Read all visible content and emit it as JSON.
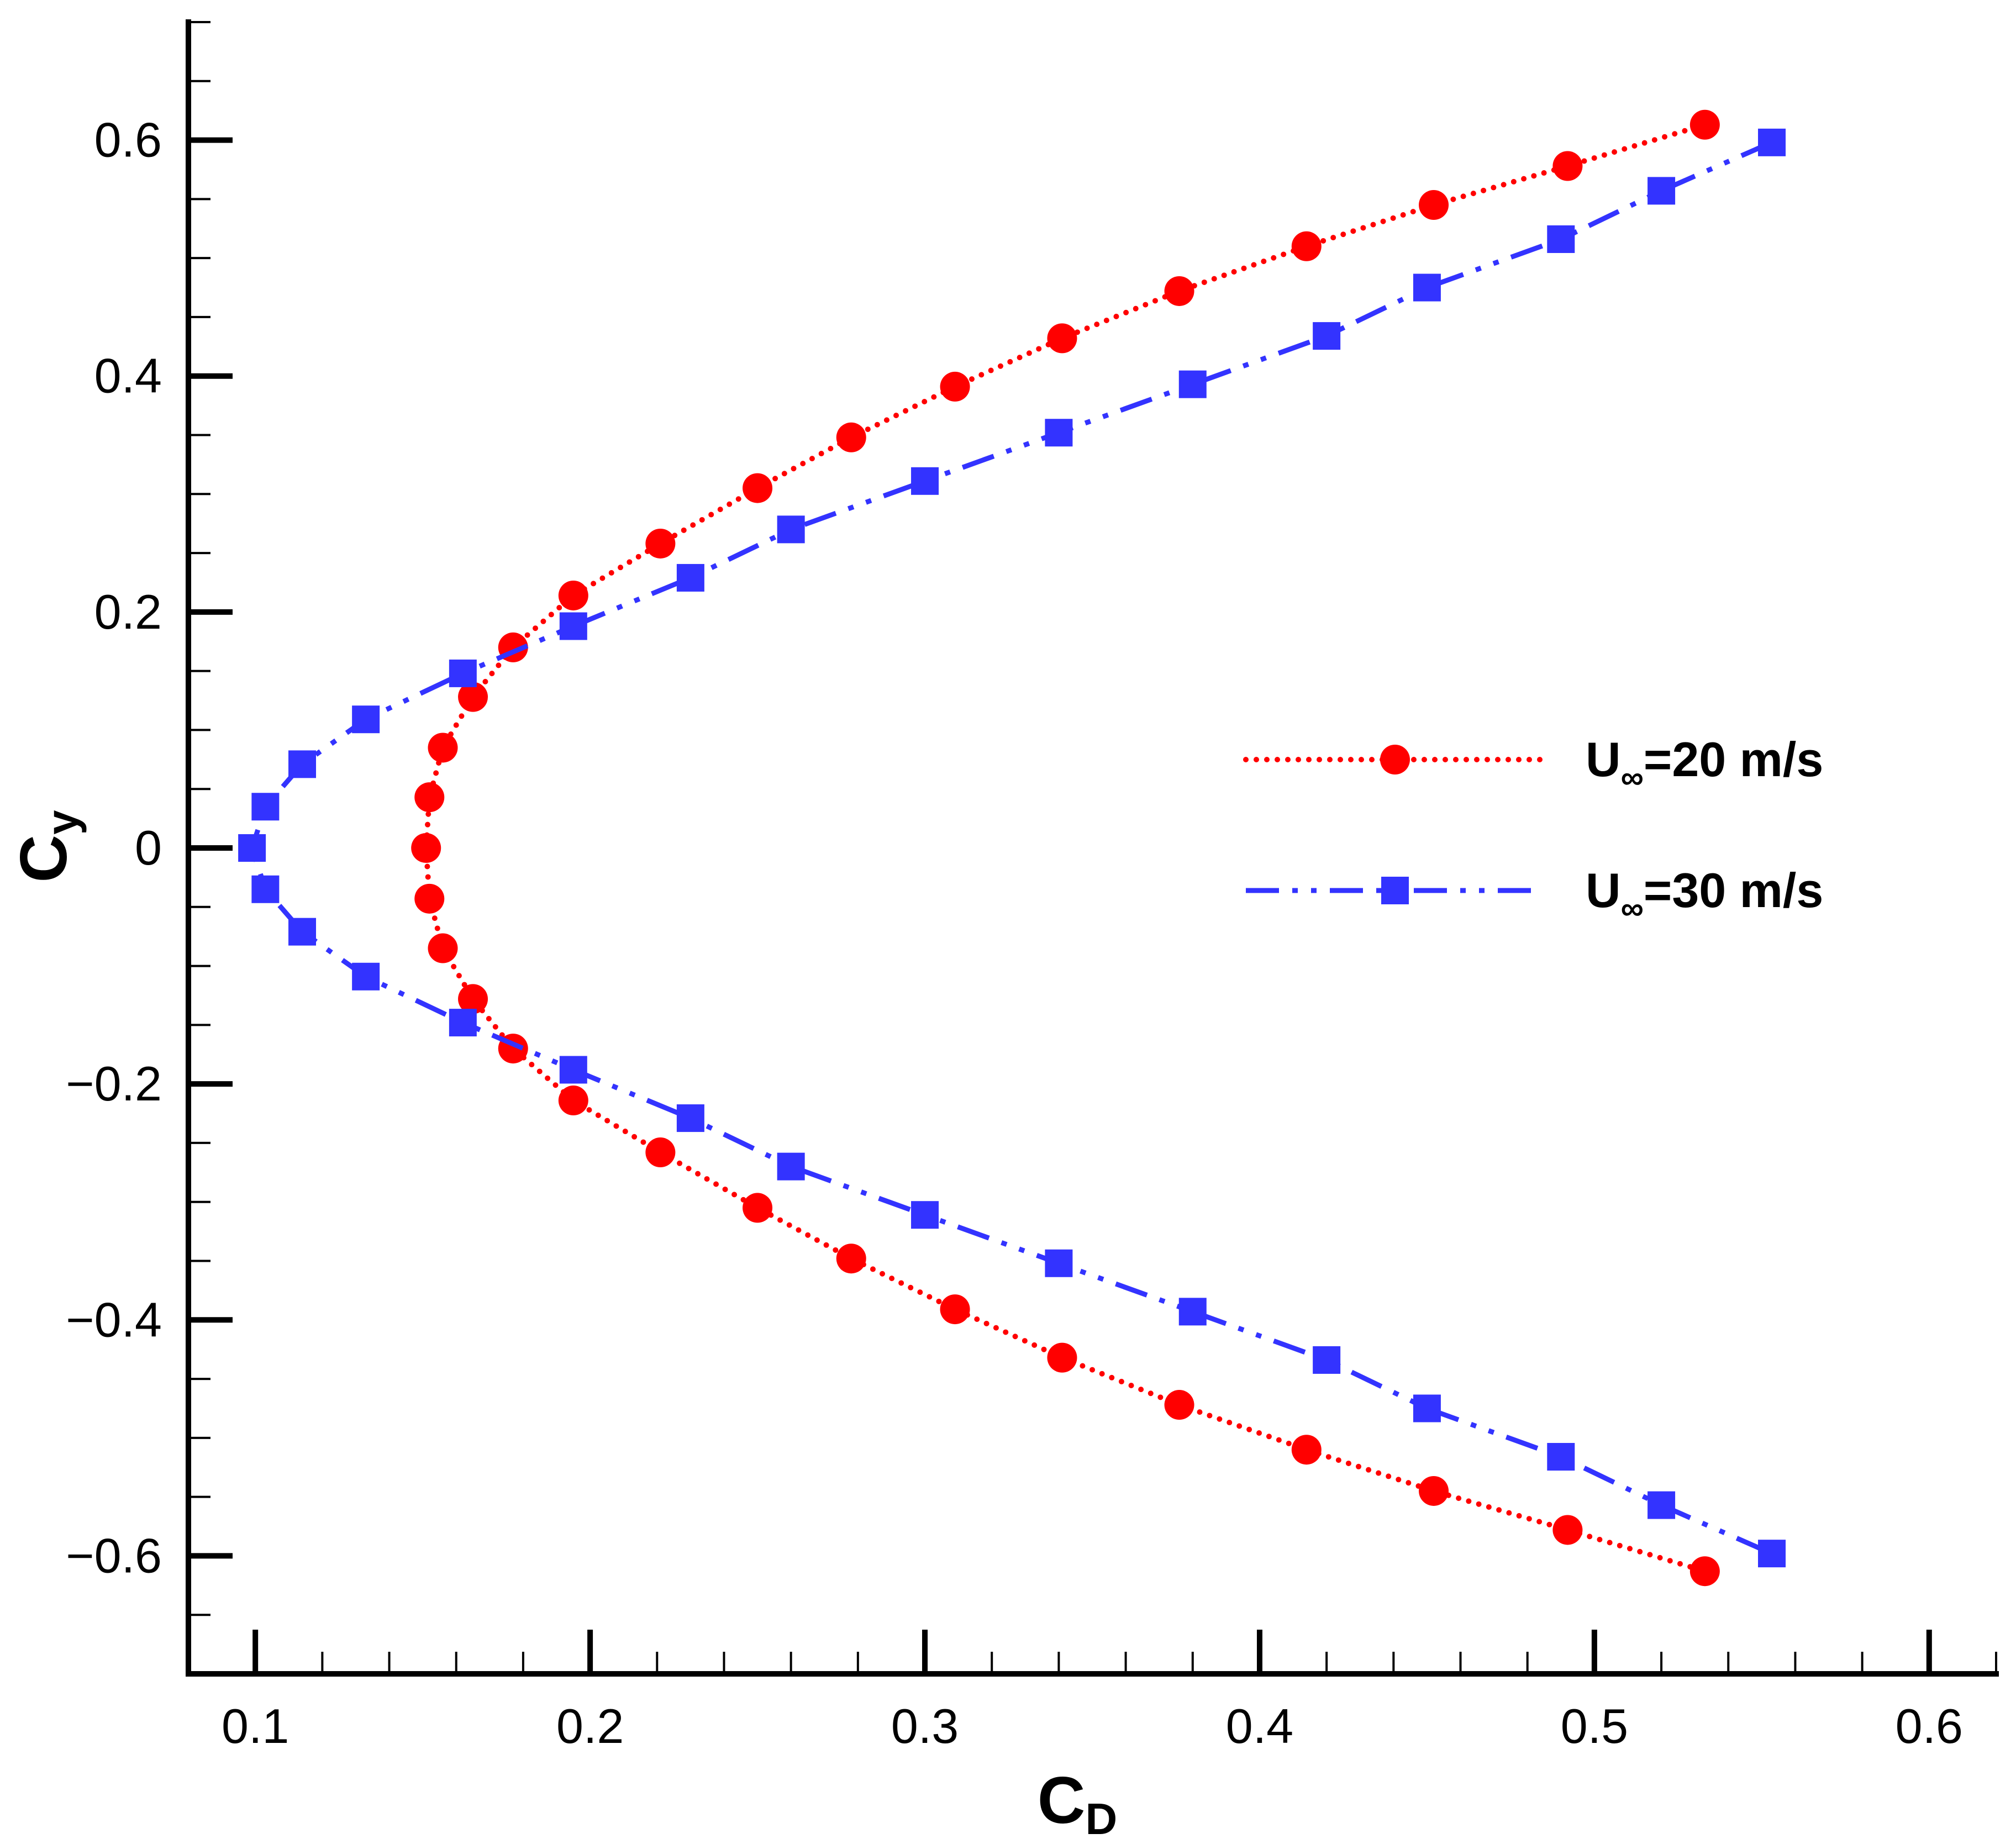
{
  "chart_data": {
    "type": "line",
    "xlabel": {
      "main": "C",
      "sub": "D"
    },
    "ylabel": {
      "main": "C",
      "sub": "y"
    },
    "xlim": [
      0.08,
      0.62
    ],
    "ylim": [
      -0.7,
      0.7
    ],
    "x_ticks": [
      0.1,
      0.2,
      0.3,
      0.4,
      0.5,
      0.6
    ],
    "x_tick_labels": [
      "0.1",
      "0.2",
      "0.3",
      "0.4",
      "0.5",
      "0.6"
    ],
    "x_minor_step": 0.02,
    "y_ticks": [
      -0.6,
      -0.4,
      -0.2,
      0,
      0.2,
      0.4,
      0.6
    ],
    "y_tick_labels": [
      "−0.6",
      "−0.4",
      "−0.2",
      "0",
      "0.2",
      "0.4",
      "0.6"
    ],
    "y_minor_step": 0.05,
    "grid": false,
    "legend_position": "right-middle",
    "series": [
      {
        "name": "U∞=20 m/s",
        "legend": {
          "main": "U",
          "sub": "∞",
          "rest": "=20 m/s"
        },
        "color": "#ff0000",
        "line_style": "dotted",
        "marker": "circle",
        "x": [
          0.533,
          0.492,
          0.452,
          0.414,
          0.376,
          0.341,
          0.309,
          0.278,
          0.25,
          0.221,
          0.195,
          0.177,
          0.165,
          0.156,
          0.152,
          0.151,
          0.152,
          0.156,
          0.165,
          0.177,
          0.195,
          0.221,
          0.25,
          0.278,
          0.309,
          0.341,
          0.376,
          0.414,
          0.452,
          0.492,
          0.533
        ],
        "y": [
          0.613,
          0.578,
          0.545,
          0.51,
          0.472,
          0.432,
          0.391,
          0.348,
          0.305,
          0.258,
          0.214,
          0.17,
          0.128,
          0.085,
          0.043,
          0.0,
          -0.043,
          -0.085,
          -0.128,
          -0.17,
          -0.214,
          -0.258,
          -0.305,
          -0.348,
          -0.391,
          -0.432,
          -0.472,
          -0.51,
          -0.545,
          -0.578,
          -0.613
        ]
      },
      {
        "name": "U∞=30 m/s",
        "legend": {
          "main": "U",
          "sub": "∞",
          "rest": "=30 m/s"
        },
        "color": "#3333ff",
        "line_style": "dash-dot-dot",
        "marker": "square",
        "x": [
          0.553,
          0.52,
          0.49,
          0.45,
          0.42,
          0.38,
          0.34,
          0.3,
          0.26,
          0.23,
          0.195,
          0.162,
          0.133,
          0.114,
          0.103,
          0.099,
          0.103,
          0.114,
          0.133,
          0.162,
          0.195,
          0.23,
          0.26,
          0.3,
          0.34,
          0.38,
          0.42,
          0.45,
          0.49,
          0.52,
          0.553
        ],
        "y": [
          0.598,
          0.557,
          0.516,
          0.475,
          0.434,
          0.393,
          0.352,
          0.311,
          0.27,
          0.229,
          0.188,
          0.148,
          0.109,
          0.071,
          0.035,
          0.0,
          -0.035,
          -0.071,
          -0.109,
          -0.148,
          -0.188,
          -0.229,
          -0.27,
          -0.311,
          -0.352,
          -0.393,
          -0.434,
          -0.475,
          -0.516,
          -0.557,
          -0.598
        ]
      }
    ]
  }
}
